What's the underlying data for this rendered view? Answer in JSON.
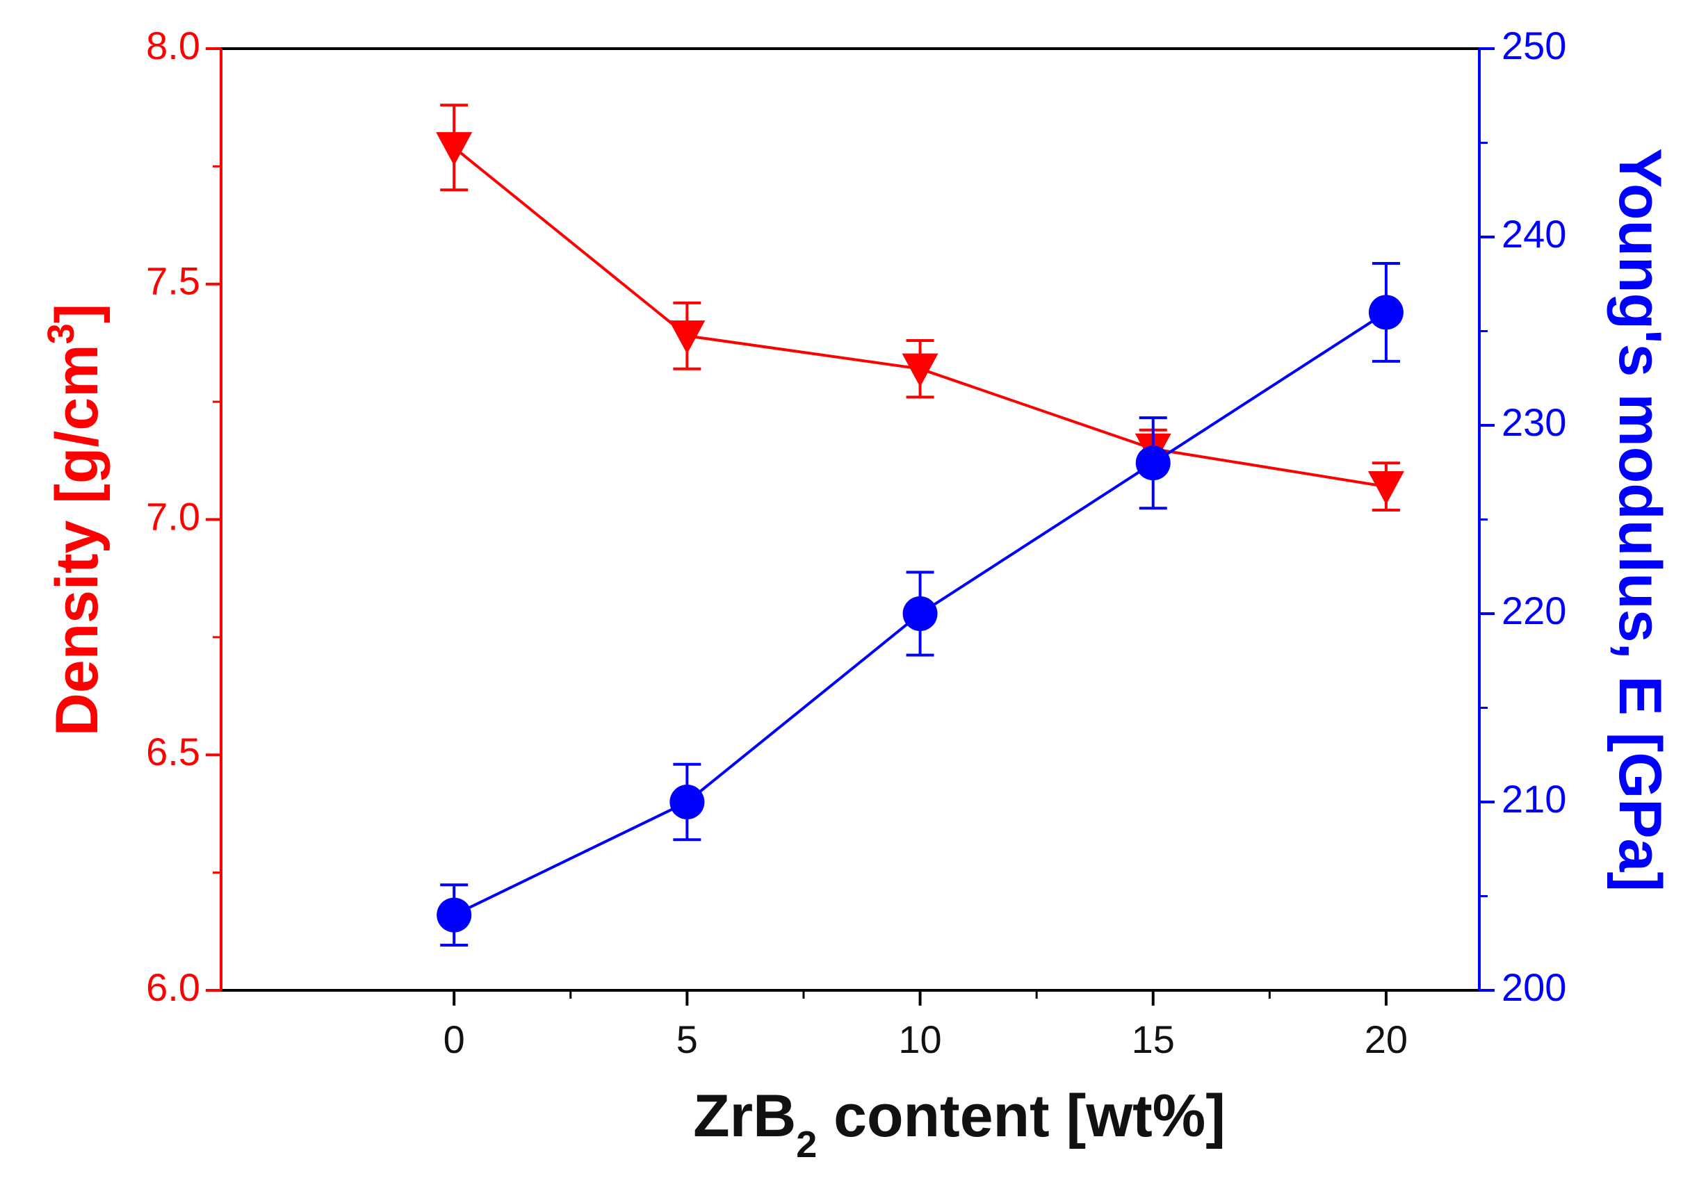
{
  "chart_data": {
    "type": "line",
    "title": "",
    "xlabel": {
      "main": "ZrB",
      "sub": "2",
      "rest": " content [wt%]"
    },
    "ylabel_left": {
      "main": "Density [g/cm",
      "sup": "3",
      "rest": "]"
    },
    "ylabel_right": "Young's modulus, E [GPa]",
    "x": [
      0,
      5,
      10,
      15,
      20
    ],
    "x_ticks": [
      "0",
      "5",
      "10",
      "15",
      "20"
    ],
    "xlim": [
      -5,
      22
    ],
    "ylim_left": [
      6.0,
      8.0
    ],
    "y_ticks_left": [
      "6.0",
      "6.5",
      "7.0",
      "7.5",
      "8.0"
    ],
    "ylim_right": [
      200,
      250
    ],
    "y_ticks_right": [
      "200",
      "210",
      "220",
      "230",
      "240",
      "250"
    ],
    "series": [
      {
        "name": "Density",
        "axis": "left",
        "color": "#ff0000",
        "marker": "triangle-down",
        "values": [
          7.79,
          7.39,
          7.32,
          7.15,
          7.07
        ],
        "errors": [
          0.09,
          0.07,
          0.06,
          0.04,
          0.05
        ]
      },
      {
        "name": "Young's modulus",
        "axis": "right",
        "color": "#0000ff",
        "marker": "circle",
        "values": [
          204,
          210,
          220,
          228,
          236
        ],
        "errors": [
          1.6,
          2.0,
          2.2,
          2.4,
          2.6
        ]
      }
    ],
    "colors": {
      "left_axis": "#ff0000",
      "right_axis": "#0000ff",
      "frame": "#000000"
    }
  }
}
